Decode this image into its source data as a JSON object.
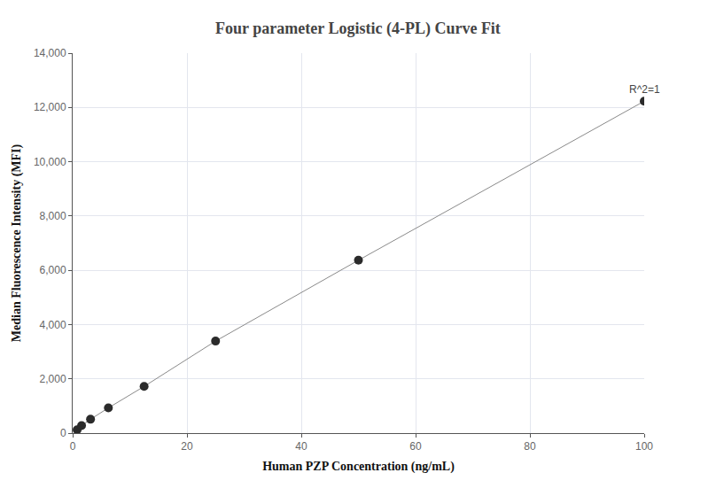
{
  "chart_data": {
    "type": "scatter",
    "title": "Four parameter Logistic (4-PL) Curve Fit",
    "x_label": "Human PZP Concentration (ng/mL)",
    "y_label": "Median Fluorescence Intensity (MFI)",
    "x": [
      0.78,
      1.56,
      3.125,
      6.25,
      12.5,
      25,
      50,
      100
    ],
    "series": [
      {
        "color": "#2b2b2b",
        "marker": "circle",
        "line_style": "solid",
        "values": [
          120,
          280,
          510,
          930,
          1720,
          3390,
          6370,
          12230
        ]
      }
    ],
    "annotations": [
      {
        "text": "R^2=1",
        "x": 100,
        "y": 12230
      }
    ],
    "xlim": [
      0,
      100
    ],
    "xticks": [
      0,
      20,
      40,
      60,
      80,
      100
    ],
    "ylim": [
      0,
      14000
    ],
    "yticks": [
      0,
      {
        "value": 2000,
        "label": "2,000"
      },
      {
        "value": 4000,
        "label": "4,000"
      },
      {
        "value": 6000,
        "label": "6,000"
      },
      {
        "value": 8000,
        "label": "8,000"
      },
      {
        "value": 10000,
        "label": "10,000"
      },
      {
        "value": 12000,
        "label": "12,000"
      },
      {
        "value": 14000,
        "label": "14,000"
      }
    ],
    "grid": true
  }
}
